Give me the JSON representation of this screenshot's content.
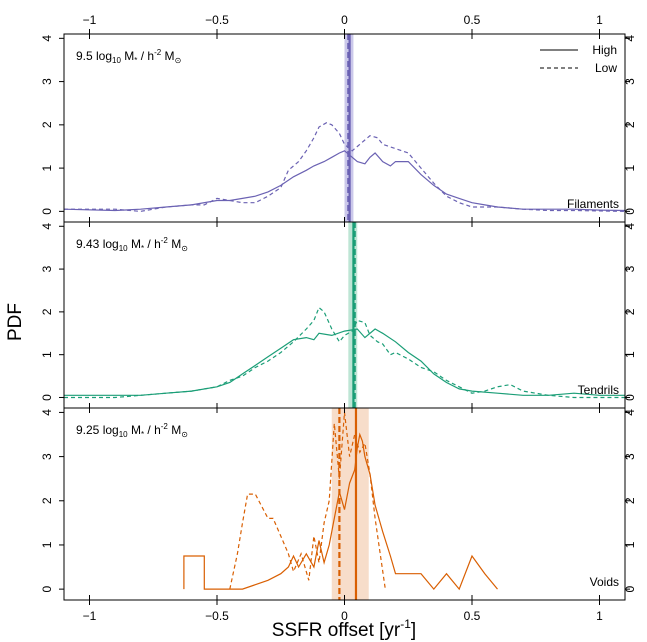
{
  "chart_data": {
    "type": "line",
    "xlabel": "SSFR offset [yr",
    "xlabel_sup": "-1",
    "xlabel_close": "]",
    "ylabel": "PDF",
    "xlim": [
      -1.1,
      1.1
    ],
    "ylim": [
      0,
      4.1
    ],
    "x_ticks": [
      -1,
      -0.5,
      0,
      0.5,
      1
    ],
    "x_tick_labels": [
      "−1",
      "−0.5",
      "0",
      "0.5",
      "1"
    ],
    "y_ticks": [
      0,
      1,
      2,
      3,
      4
    ],
    "y_tick_labels": [
      "0",
      "1",
      "2",
      "3",
      "4"
    ],
    "legend": {
      "position": "top-right",
      "entries": [
        {
          "label": "High",
          "style": "solid"
        },
        {
          "label": "Low",
          "style": "dashed"
        }
      ]
    },
    "panels": [
      {
        "name": "Filaments",
        "color": "#6b62b3",
        "band_color": "#b9b6e3",
        "mass_value": "9.5",
        "mass_prefix": "log",
        "mass_sub": "10",
        "mass_unit": "M",
        "mass_unit_sub": "*",
        "mass_unit_rest": "/ h",
        "mass_unit_sup": "-2",
        "mass_unit_end": "M",
        "mass_sun_sub": "⊙",
        "band": [
          0.0,
          0.035
        ],
        "vline_high": 0.02,
        "vline_low": 0.015,
        "series": [
          {
            "name": "High",
            "style": "solid",
            "x": [
              -1.1,
              -0.9,
              -0.8,
              -0.7,
              -0.6,
              -0.5,
              -0.45,
              -0.4,
              -0.35,
              -0.3,
              -0.25,
              -0.2,
              -0.15,
              -0.12,
              -0.08,
              -0.05,
              -0.02,
              0.0,
              0.02,
              0.05,
              0.08,
              0.1,
              0.12,
              0.15,
              0.18,
              0.2,
              0.25,
              0.3,
              0.35,
              0.4,
              0.45,
              0.5,
              0.55,
              0.6,
              0.7,
              0.8,
              0.9,
              1.0,
              1.1
            ],
            "y": [
              0.05,
              0.02,
              0.05,
              0.1,
              0.15,
              0.25,
              0.25,
              0.3,
              0.35,
              0.45,
              0.6,
              0.8,
              0.95,
              1.05,
              1.15,
              1.25,
              1.35,
              1.4,
              1.3,
              1.15,
              1.1,
              1.25,
              1.35,
              1.15,
              1.05,
              1.15,
              1.15,
              0.85,
              0.6,
              0.4,
              0.3,
              0.2,
              0.15,
              0.1,
              0.05,
              0.05,
              0.05,
              0.03,
              0.02
            ]
          },
          {
            "name": "Low",
            "style": "dashed",
            "x": [
              -1.1,
              -0.9,
              -0.8,
              -0.7,
              -0.6,
              -0.55,
              -0.5,
              -0.45,
              -0.4,
              -0.35,
              -0.3,
              -0.25,
              -0.22,
              -0.18,
              -0.15,
              -0.12,
              -0.1,
              -0.07,
              -0.05,
              -0.02,
              0.0,
              0.03,
              0.05,
              0.08,
              0.1,
              0.13,
              0.15,
              0.2,
              0.25,
              0.3,
              0.35,
              0.4,
              0.45,
              0.5,
              0.55,
              0.6,
              0.7,
              0.8,
              0.9,
              1.0,
              1.1
            ],
            "y": [
              0.05,
              0.05,
              0.0,
              0.1,
              0.15,
              0.15,
              0.3,
              0.25,
              0.2,
              0.2,
              0.35,
              0.55,
              0.95,
              1.15,
              1.4,
              1.7,
              1.95,
              2.05,
              2.0,
              1.8,
              1.55,
              1.4,
              1.5,
              1.65,
              1.75,
              1.7,
              1.55,
              1.45,
              1.35,
              1.0,
              0.65,
              0.35,
              0.2,
              0.1,
              0.1,
              0.1,
              0.05,
              0.02,
              0.02,
              0.01,
              0.0
            ]
          }
        ]
      },
      {
        "name": "Tendrils",
        "color": "#1b9e77",
        "band_color": "#a8dcc7",
        "mass_value": "9.43",
        "mass_prefix": "log",
        "mass_sub": "10",
        "mass_unit": "M",
        "mass_unit_sub": "*",
        "mass_unit_rest": "/ h",
        "mass_unit_sup": "-2",
        "mass_unit_end": "M",
        "mass_sun_sub": "⊙",
        "band": [
          0.015,
          0.05
        ],
        "vline_high": 0.035,
        "vline_low": 0.04,
        "series": [
          {
            "name": "High",
            "style": "solid",
            "x": [
              -1.1,
              -0.9,
              -0.8,
              -0.7,
              -0.6,
              -0.5,
              -0.45,
              -0.4,
              -0.35,
              -0.3,
              -0.25,
              -0.2,
              -0.15,
              -0.12,
              -0.1,
              -0.05,
              0.0,
              0.05,
              0.08,
              0.12,
              0.15,
              0.2,
              0.25,
              0.3,
              0.35,
              0.4,
              0.45,
              0.5,
              0.6,
              0.7,
              0.8,
              0.9,
              1.0,
              1.1
            ],
            "y": [
              0.05,
              0.05,
              0.05,
              0.1,
              0.15,
              0.25,
              0.35,
              0.55,
              0.75,
              0.95,
              1.15,
              1.35,
              1.4,
              1.35,
              1.5,
              1.45,
              1.55,
              1.6,
              1.4,
              1.6,
              1.5,
              1.3,
              1.05,
              0.85,
              0.55,
              0.35,
              0.2,
              0.15,
              0.1,
              0.05,
              0.05,
              0.1,
              0.05,
              0.05
            ]
          },
          {
            "name": "Low",
            "style": "dashed",
            "x": [
              -1.1,
              -0.9,
              -0.8,
              -0.7,
              -0.6,
              -0.5,
              -0.45,
              -0.4,
              -0.35,
              -0.3,
              -0.25,
              -0.2,
              -0.15,
              -0.12,
              -0.1,
              -0.08,
              -0.05,
              -0.02,
              0.0,
              0.03,
              0.05,
              0.08,
              0.1,
              0.13,
              0.15,
              0.18,
              0.2,
              0.25,
              0.3,
              0.35,
              0.4,
              0.45,
              0.5,
              0.55,
              0.6,
              0.65,
              0.7,
              0.8,
              0.9,
              1.0,
              1.1
            ],
            "y": [
              0.0,
              0.0,
              0.05,
              0.1,
              0.15,
              0.25,
              0.4,
              0.5,
              0.7,
              0.85,
              1.05,
              1.3,
              1.6,
              1.8,
              2.1,
              2.0,
              1.6,
              1.3,
              1.45,
              1.55,
              1.8,
              1.75,
              1.45,
              1.3,
              1.25,
              1.0,
              1.05,
              0.9,
              0.7,
              0.6,
              0.4,
              0.25,
              0.1,
              0.15,
              0.25,
              0.3,
              0.15,
              0.05,
              0.0,
              0.0,
              0.0
            ]
          }
        ]
      },
      {
        "name": "Voids",
        "color": "#d95f02",
        "band_color": "#f4d2b8",
        "mass_value": "9.25",
        "mass_prefix": "log",
        "mass_sub": "10",
        "mass_unit": "M",
        "mass_unit_sub": "*",
        "mass_unit_rest": "/ h",
        "mass_unit_sup": "-2",
        "mass_unit_end": "M",
        "mass_sun_sub": "⊙",
        "band": [
          -0.05,
          0.095
        ],
        "vline_high": 0.045,
        "vline_low": -0.02,
        "series": [
          {
            "name": "High",
            "style": "solid",
            "x": [
              -0.63,
              -0.63,
              -0.6,
              -0.55,
              -0.55,
              -0.52,
              -0.45,
              -0.4,
              -0.35,
              -0.3,
              -0.25,
              -0.22,
              -0.2,
              -0.18,
              -0.15,
              -0.12,
              -0.1,
              -0.08,
              -0.06,
              -0.04,
              -0.02,
              0.0,
              0.02,
              0.04,
              0.05,
              0.06,
              0.07,
              0.08,
              0.1,
              0.12,
              0.15,
              0.18,
              0.2,
              0.25,
              0.3,
              0.35,
              0.4,
              0.45,
              0.5,
              0.55,
              0.6
            ],
            "y": [
              0.0,
              0.75,
              0.75,
              0.75,
              0.0,
              0.0,
              0.0,
              0.0,
              0.1,
              0.2,
              0.35,
              0.5,
              0.75,
              0.5,
              0.8,
              0.5,
              1.1,
              0.6,
              1.0,
              1.6,
              2.2,
              1.8,
              2.4,
              2.7,
              3.2,
              3.5,
              3.35,
              3.0,
              2.6,
              1.9,
              1.3,
              0.75,
              0.35,
              0.35,
              0.35,
              0.0,
              0.35,
              0.0,
              0.75,
              0.35,
              0.0
            ]
          },
          {
            "name": "Low",
            "style": "dashed",
            "x": [
              -0.45,
              -0.42,
              -0.4,
              -0.38,
              -0.35,
              -0.3,
              -0.28,
              -0.25,
              -0.22,
              -0.2,
              -0.17,
              -0.14,
              -0.12,
              -0.1,
              -0.08,
              -0.06,
              -0.04,
              -0.02,
              0.0,
              0.02,
              0.04,
              0.06,
              0.08,
              0.1,
              0.12,
              0.14,
              0.16
            ],
            "y": [
              0.0,
              0.8,
              1.5,
              2.15,
              2.15,
              1.6,
              1.6,
              1.2,
              0.8,
              0.4,
              0.8,
              0.2,
              1.2,
              0.6,
              1.5,
              2.0,
              3.75,
              2.5,
              4.0,
              3.0,
              3.5,
              3.1,
              3.3,
              2.6,
              1.6,
              0.8,
              0.0
            ]
          }
        ]
      }
    ]
  }
}
